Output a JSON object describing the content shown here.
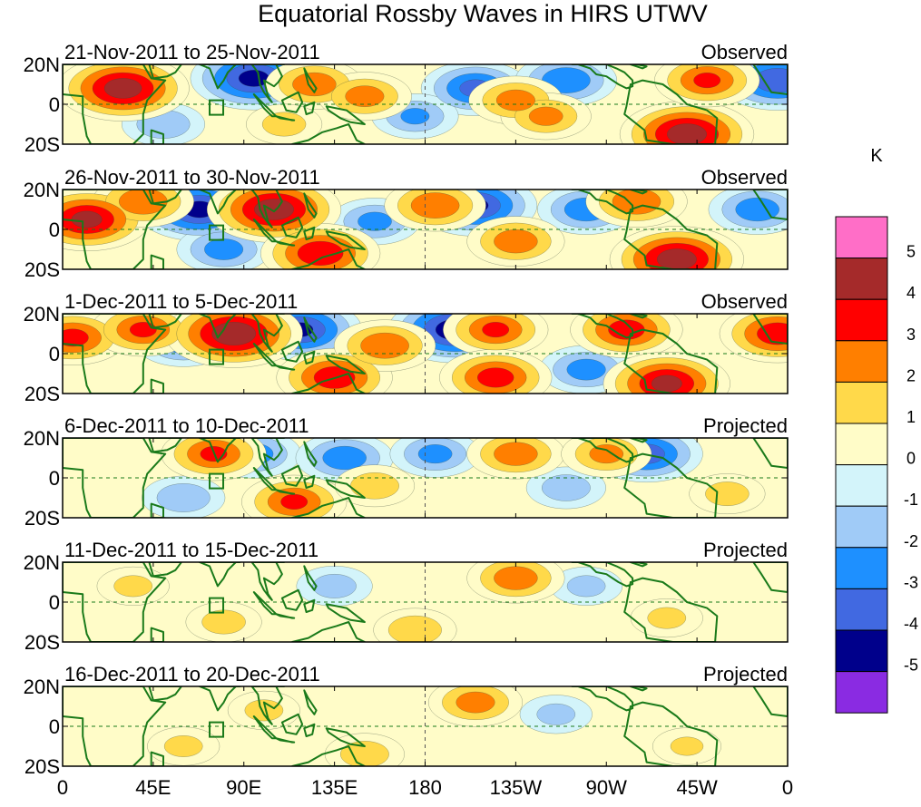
{
  "chart_data": {
    "type": "heatmap",
    "title": "Equatorial Rossby Waves in HIRS UTWV",
    "units": "K",
    "xlabel": "",
    "ylabel": "",
    "x_range_deg_east": [
      0,
      360
    ],
    "y_range_deg": [
      -20,
      20
    ],
    "x_ticks": [
      {
        "label": "0",
        "lon": 0
      },
      {
        "label": "45E",
        "lon": 45
      },
      {
        "label": "90E",
        "lon": 90
      },
      {
        "label": "135E",
        "lon": 135
      },
      {
        "label": "180",
        "lon": 180
      },
      {
        "label": "135W",
        "lon": 225
      },
      {
        "label": "90W",
        "lon": 270
      },
      {
        "label": "45W",
        "lon": 315
      },
      {
        "label": "0",
        "lon": 360
      }
    ],
    "y_ticks": [
      {
        "label": "20N",
        "lat": 20
      },
      {
        "label": "0",
        "lat": 0
      },
      {
        "label": "20S",
        "lat": -20
      }
    ],
    "colorbar": {
      "levels": [
        -5,
        -4,
        -3,
        -2,
        -1,
        0,
        1,
        2,
        3,
        4,
        5
      ],
      "level_labels": [
        "-5",
        "-4",
        "-3",
        "-2",
        "-1",
        "0",
        "1",
        "2",
        "3",
        "4",
        "5"
      ],
      "colors": [
        "#8a2be2",
        "#00008b",
        "#4169e1",
        "#1e90ff",
        "#a0cbf7",
        "#d3f4fa",
        "#fffcc8",
        "#ffd94a",
        "#ff7f00",
        "#ff0000",
        "#a52a2a",
        "#ff6ec7"
      ]
    },
    "panels": [
      {
        "date_range": "21-Nov-2011 to 25-Nov-2011",
        "status": "Observed",
        "anomalies": [
          {
            "lon": 30,
            "lat": 8,
            "value": 4.5
          },
          {
            "lon": 95,
            "lat": 13,
            "value": -4.2
          },
          {
            "lon": 125,
            "lat": 10,
            "value": 2.6
          },
          {
            "lon": 150,
            "lat": 4,
            "value": 2.4
          },
          {
            "lon": 205,
            "lat": 8,
            "value": -3.2
          },
          {
            "lon": 225,
            "lat": 2,
            "value": 2.4
          },
          {
            "lon": 240,
            "lat": -6,
            "value": 2.2
          },
          {
            "lon": 250,
            "lat": 12,
            "value": -2.8
          },
          {
            "lon": 310,
            "lat": -15,
            "value": 4.6
          },
          {
            "lon": 320,
            "lat": 12,
            "value": 3.0
          },
          {
            "lon": 355,
            "lat": 12,
            "value": -3.8
          },
          {
            "lon": 50,
            "lat": -10,
            "value": -1.8
          },
          {
            "lon": 175,
            "lat": -6,
            "value": -2.0
          },
          {
            "lon": 110,
            "lat": -10,
            "value": 1.4
          }
        ]
      },
      {
        "date_range": "26-Nov-2011 to 30-Nov-2011",
        "status": "Observed",
        "anomalies": [
          {
            "lon": 12,
            "lat": 5,
            "value": 4.2
          },
          {
            "lon": 40,
            "lat": 14,
            "value": 2.8
          },
          {
            "lon": 68,
            "lat": 10,
            "value": -4.2
          },
          {
            "lon": 105,
            "lat": 10,
            "value": 4.6
          },
          {
            "lon": 128,
            "lat": -12,
            "value": 3.8
          },
          {
            "lon": 185,
            "lat": 12,
            "value": 2.8
          },
          {
            "lon": 205,
            "lat": 12,
            "value": -4.0
          },
          {
            "lon": 225,
            "lat": -6,
            "value": 2.6
          },
          {
            "lon": 260,
            "lat": 10,
            "value": -2.6
          },
          {
            "lon": 285,
            "lat": 14,
            "value": 2.8
          },
          {
            "lon": 305,
            "lat": -15,
            "value": 4.6
          },
          {
            "lon": 345,
            "lat": 10,
            "value": -2.6
          },
          {
            "lon": 155,
            "lat": 4,
            "value": -2.2
          },
          {
            "lon": 80,
            "lat": -10,
            "value": -2.4
          }
        ]
      },
      {
        "date_range": "1-Dec-2011 to 5-Dec-2011",
        "status": "Observed",
        "anomalies": [
          {
            "lon": 5,
            "lat": 8,
            "value": 3.2
          },
          {
            "lon": 40,
            "lat": 12,
            "value": 3.0
          },
          {
            "lon": 60,
            "lat": 6,
            "value": -2.6
          },
          {
            "lon": 85,
            "lat": 10,
            "value": 4.8
          },
          {
            "lon": 118,
            "lat": 12,
            "value": -4.0
          },
          {
            "lon": 135,
            "lat": -12,
            "value": 3.6
          },
          {
            "lon": 160,
            "lat": 4,
            "value": 2.8
          },
          {
            "lon": 195,
            "lat": 12,
            "value": -4.6
          },
          {
            "lon": 215,
            "lat": 12,
            "value": 3.0
          },
          {
            "lon": 215,
            "lat": -12,
            "value": 3.4
          },
          {
            "lon": 260,
            "lat": -8,
            "value": -2.4
          },
          {
            "lon": 280,
            "lat": 12,
            "value": 3.4
          },
          {
            "lon": 300,
            "lat": -15,
            "value": 4.2
          },
          {
            "lon": 355,
            "lat": 10,
            "value": 3.6
          }
        ]
      },
      {
        "date_range": "6-Dec-2011 to 10-Dec-2011",
        "status": "Projected",
        "anomalies": [
          {
            "lon": 75,
            "lat": 12,
            "value": 3.0
          },
          {
            "lon": 95,
            "lat": 12,
            "value": -2.4
          },
          {
            "lon": 115,
            "lat": -12,
            "value": 3.0
          },
          {
            "lon": 140,
            "lat": 10,
            "value": -2.6
          },
          {
            "lon": 185,
            "lat": 12,
            "value": -2.2
          },
          {
            "lon": 225,
            "lat": 12,
            "value": 2.6
          },
          {
            "lon": 290,
            "lat": 12,
            "value": -3.4
          },
          {
            "lon": 270,
            "lat": 12,
            "value": 2.2
          },
          {
            "lon": 250,
            "lat": -5,
            "value": -1.6
          },
          {
            "lon": 60,
            "lat": -10,
            "value": -1.8
          },
          {
            "lon": 155,
            "lat": -4,
            "value": 1.6
          },
          {
            "lon": 330,
            "lat": -8,
            "value": 1.4
          }
        ]
      },
      {
        "date_range": "11-Dec-2011 to 15-Dec-2011",
        "status": "Projected",
        "anomalies": [
          {
            "lon": 225,
            "lat": 12,
            "value": 2.6
          },
          {
            "lon": 175,
            "lat": -14,
            "value": 1.8
          },
          {
            "lon": 80,
            "lat": -10,
            "value": 1.4
          },
          {
            "lon": 35,
            "lat": 8,
            "value": 1.2
          },
          {
            "lon": 135,
            "lat": 8,
            "value": -1.4
          },
          {
            "lon": 260,
            "lat": 8,
            "value": -1.2
          },
          {
            "lon": 300,
            "lat": -8,
            "value": 1.2
          }
        ]
      },
      {
        "date_range": "16-Dec-2011 to 20-Dec-2011",
        "status": "Projected",
        "anomalies": [
          {
            "lon": 205,
            "lat": 12,
            "value": 2.4
          },
          {
            "lon": 150,
            "lat": -14,
            "value": 1.6
          },
          {
            "lon": 100,
            "lat": 8,
            "value": 1.2
          },
          {
            "lon": 60,
            "lat": -10,
            "value": 1.2
          },
          {
            "lon": 245,
            "lat": 6,
            "value": -1.2
          },
          {
            "lon": 310,
            "lat": -10,
            "value": 1.0
          }
        ]
      }
    ]
  }
}
